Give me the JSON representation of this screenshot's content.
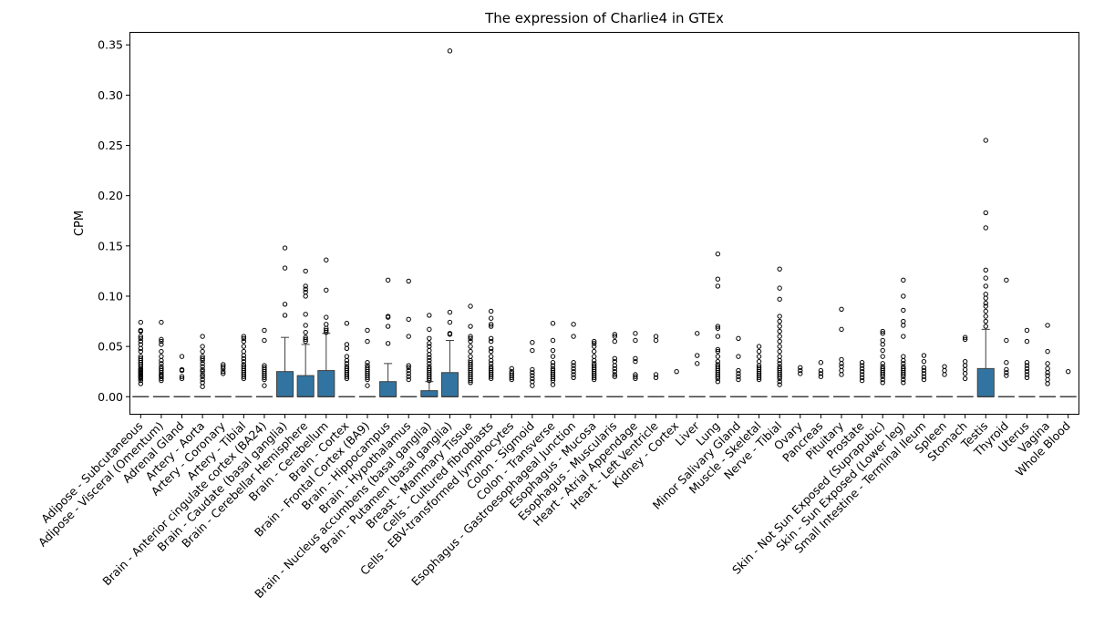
{
  "chart_data": {
    "type": "box",
    "title": "The expression of Charlie4 in GTEx",
    "xlabel": "",
    "ylabel": "CPM",
    "ylim": [
      -0.017,
      0.362
    ],
    "yticks": [
      0.0,
      0.05,
      0.1,
      0.15,
      0.2,
      0.25,
      0.3,
      0.35
    ],
    "ytick_labels": [
      "0.00",
      "0.05",
      "0.10",
      "0.15",
      "0.20",
      "0.25",
      "0.30",
      "0.35"
    ],
    "grid": false,
    "box_color": "#3274a1",
    "categories": [
      {
        "name": "Adipose - Subcutaneous",
        "box": [
          0,
          0,
          0,
          0,
          0
        ],
        "outliers": [
          0.013,
          0.016,
          0.018,
          0.019,
          0.02,
          0.021,
          0.022,
          0.023,
          0.024,
          0.025,
          0.026,
          0.027,
          0.028,
          0.03,
          0.032,
          0.034,
          0.036,
          0.038,
          0.04,
          0.045,
          0.048,
          0.052,
          0.055,
          0.058,
          0.06,
          0.065,
          0.066,
          0.074
        ]
      },
      {
        "name": "Adipose - Visceral (Omentum)",
        "box": [
          0,
          0,
          0,
          0,
          0
        ],
        "outliers": [
          0.016,
          0.018,
          0.02,
          0.021,
          0.022,
          0.024,
          0.026,
          0.028,
          0.03,
          0.033,
          0.036,
          0.04,
          0.045,
          0.052,
          0.055,
          0.057,
          0.074
        ]
      },
      {
        "name": "Adrenal Gland",
        "box": [
          0,
          0,
          0,
          0,
          0
        ],
        "outliers": [
          0.018,
          0.02,
          0.026,
          0.027,
          0.04
        ]
      },
      {
        "name": "Artery - Aorta",
        "box": [
          0,
          0,
          0,
          0,
          0
        ],
        "outliers": [
          0.01,
          0.014,
          0.017,
          0.02,
          0.022,
          0.025,
          0.027,
          0.03,
          0.033,
          0.036,
          0.038,
          0.04,
          0.045,
          0.05,
          0.06
        ]
      },
      {
        "name": "Artery - Coronary",
        "box": [
          0,
          0,
          0,
          0,
          0
        ],
        "outliers": [
          0.023,
          0.025,
          0.028,
          0.03,
          0.032
        ]
      },
      {
        "name": "Artery - Tibial",
        "box": [
          0,
          0,
          0,
          0,
          0
        ],
        "outliers": [
          0.018,
          0.02,
          0.022,
          0.024,
          0.026,
          0.028,
          0.03,
          0.032,
          0.035,
          0.038,
          0.041,
          0.045,
          0.05,
          0.055,
          0.058,
          0.06
        ]
      },
      {
        "name": "Brain - Anterior cingulate cortex (BA24)",
        "box": [
          0,
          0,
          0,
          0,
          0
        ],
        "outliers": [
          0.011,
          0.017,
          0.019,
          0.021,
          0.023,
          0.025,
          0.027,
          0.029,
          0.031,
          0.056,
          0.066
        ]
      },
      {
        "name": "Brain - Caudate (basal ganglia)",
        "box": [
          0,
          0,
          0,
          0.025,
          0.059
        ],
        "outliers": [
          0.081,
          0.092,
          0.128,
          0.148
        ]
      },
      {
        "name": "Brain - Cerebellar Hemisphere",
        "box": [
          0,
          0,
          0,
          0.021,
          0.052
        ],
        "outliers": [
          0.055,
          0.057,
          0.059,
          0.064,
          0.071,
          0.082,
          0.1,
          0.104,
          0.107,
          0.11,
          0.125
        ]
      },
      {
        "name": "Brain - Cerebellum",
        "box": [
          0,
          0,
          0,
          0.026,
          0.063
        ],
        "outliers": [
          0.064,
          0.066,
          0.068,
          0.072,
          0.079,
          0.106,
          0.136
        ]
      },
      {
        "name": "Brain - Cortex",
        "box": [
          0,
          0,
          0,
          0,
          0
        ],
        "outliers": [
          0.018,
          0.02,
          0.022,
          0.024,
          0.026,
          0.028,
          0.03,
          0.033,
          0.036,
          0.04,
          0.048,
          0.052,
          0.073
        ]
      },
      {
        "name": "Brain - Frontal Cortex (BA9)",
        "box": [
          0,
          0,
          0,
          0,
          0
        ],
        "outliers": [
          0.011,
          0.017,
          0.019,
          0.021,
          0.023,
          0.025,
          0.027,
          0.029,
          0.031,
          0.034,
          0.055,
          0.066
        ]
      },
      {
        "name": "Brain - Hippocampus",
        "box": [
          0,
          0,
          0,
          0.015,
          0.033
        ],
        "outliers": [
          0.053,
          0.07,
          0.079,
          0.08,
          0.116
        ]
      },
      {
        "name": "Brain - Hypothalamus",
        "box": [
          0,
          0,
          0,
          0,
          0
        ],
        "outliers": [
          0.017,
          0.02,
          0.023,
          0.026,
          0.029,
          0.031,
          0.06,
          0.077,
          0.115
        ]
      },
      {
        "name": "Brain - Nucleus accumbens (basal ganglia)",
        "box": [
          0,
          0,
          0,
          0.006,
          0.015
        ],
        "outliers": [
          0.016,
          0.018,
          0.02,
          0.022,
          0.024,
          0.026,
          0.028,
          0.03,
          0.033,
          0.036,
          0.039,
          0.042,
          0.046,
          0.05,
          0.053,
          0.058,
          0.067,
          0.081
        ]
      },
      {
        "name": "Brain - Putamen (basal ganglia)",
        "box": [
          0,
          0,
          0,
          0.024,
          0.056
        ],
        "outliers": [
          0.062,
          0.063,
          0.074,
          0.084,
          0.344
        ]
      },
      {
        "name": "Breast - Mammary Tissue",
        "box": [
          0,
          0,
          0,
          0,
          0
        ],
        "outliers": [
          0.014,
          0.016,
          0.018,
          0.02,
          0.022,
          0.024,
          0.026,
          0.028,
          0.03,
          0.032,
          0.034,
          0.036,
          0.04,
          0.045,
          0.05,
          0.055,
          0.058,
          0.06,
          0.07,
          0.09
        ]
      },
      {
        "name": "Cells - Cultured fibroblasts",
        "box": [
          0,
          0,
          0,
          0,
          0
        ],
        "outliers": [
          0.018,
          0.02,
          0.022,
          0.024,
          0.026,
          0.028,
          0.03,
          0.033,
          0.036,
          0.04,
          0.045,
          0.048,
          0.055,
          0.058,
          0.07,
          0.072,
          0.078,
          0.085
        ]
      },
      {
        "name": "Cells - EBV-transformed lymphocytes",
        "box": [
          0,
          0,
          0,
          0,
          0
        ],
        "outliers": [
          0.017,
          0.019,
          0.021,
          0.023,
          0.025,
          0.028
        ]
      },
      {
        "name": "Colon - Sigmoid",
        "box": [
          0,
          0,
          0,
          0,
          0
        ],
        "outliers": [
          0.011,
          0.015,
          0.018,
          0.021,
          0.024,
          0.027,
          0.046,
          0.054
        ]
      },
      {
        "name": "Colon - Transverse",
        "box": [
          0,
          0,
          0,
          0,
          0
        ],
        "outliers": [
          0.012,
          0.016,
          0.018,
          0.02,
          0.022,
          0.024,
          0.026,
          0.028,
          0.031,
          0.034,
          0.04,
          0.046,
          0.056,
          0.073
        ]
      },
      {
        "name": "Esophagus - Gastroesophageal Junction",
        "box": [
          0,
          0,
          0,
          0,
          0
        ],
        "outliers": [
          0.019,
          0.022,
          0.025,
          0.028,
          0.031,
          0.034,
          0.06,
          0.072
        ]
      },
      {
        "name": "Esophagus - Mucosa",
        "box": [
          0,
          0,
          0,
          0,
          0
        ],
        "outliers": [
          0.017,
          0.019,
          0.021,
          0.023,
          0.025,
          0.027,
          0.029,
          0.031,
          0.033,
          0.036,
          0.04,
          0.045,
          0.05,
          0.053,
          0.055
        ]
      },
      {
        "name": "Esophagus - Muscularis",
        "box": [
          0,
          0,
          0,
          0,
          0
        ],
        "outliers": [
          0.02,
          0.022,
          0.025,
          0.028,
          0.031,
          0.035,
          0.038,
          0.055,
          0.06,
          0.062
        ]
      },
      {
        "name": "Heart - Atrial Appendage",
        "box": [
          0,
          0,
          0,
          0,
          0
        ],
        "outliers": [
          0.018,
          0.02,
          0.022,
          0.035,
          0.038,
          0.056,
          0.063
        ]
      },
      {
        "name": "Heart - Left Ventricle",
        "box": [
          0,
          0,
          0,
          0,
          0
        ],
        "outliers": [
          0.019,
          0.022,
          0.056,
          0.06
        ]
      },
      {
        "name": "Kidney - Cortex",
        "box": [
          0,
          0,
          0,
          0,
          0
        ],
        "outliers": [
          0.025
        ]
      },
      {
        "name": "Liver",
        "box": [
          0,
          0,
          0,
          0,
          0
        ],
        "outliers": [
          0.033,
          0.041,
          0.063
        ]
      },
      {
        "name": "Lung",
        "box": [
          0,
          0,
          0,
          0,
          0
        ],
        "outliers": [
          0.015,
          0.018,
          0.02,
          0.022,
          0.024,
          0.026,
          0.028,
          0.03,
          0.032,
          0.035,
          0.04,
          0.045,
          0.047,
          0.06,
          0.068,
          0.07,
          0.11,
          0.117,
          0.142
        ]
      },
      {
        "name": "Minor Salivary Gland",
        "box": [
          0,
          0,
          0,
          0,
          0
        ],
        "outliers": [
          0.017,
          0.02,
          0.023,
          0.026,
          0.04,
          0.058
        ]
      },
      {
        "name": "Muscle - Skeletal",
        "box": [
          0,
          0,
          0,
          0,
          0
        ],
        "outliers": [
          0.017,
          0.019,
          0.021,
          0.023,
          0.025,
          0.027,
          0.029,
          0.031,
          0.035,
          0.04,
          0.045,
          0.05
        ]
      },
      {
        "name": "Nerve - Tibial",
        "box": [
          0,
          0,
          0,
          0,
          0
        ],
        "outliers": [
          0.012,
          0.015,
          0.018,
          0.02,
          0.022,
          0.024,
          0.026,
          0.028,
          0.03,
          0.033,
          0.036,
          0.04,
          0.045,
          0.05,
          0.055,
          0.06,
          0.065,
          0.07,
          0.075,
          0.08,
          0.097,
          0.108,
          0.127
        ]
      },
      {
        "name": "Ovary",
        "box": [
          0,
          0,
          0,
          0,
          0
        ],
        "outliers": [
          0.023,
          0.026,
          0.029
        ]
      },
      {
        "name": "Pancreas",
        "box": [
          0,
          0,
          0,
          0,
          0
        ],
        "outliers": [
          0.02,
          0.023,
          0.026,
          0.034
        ]
      },
      {
        "name": "Pituitary",
        "box": [
          0,
          0,
          0,
          0,
          0
        ],
        "outliers": [
          0.022,
          0.026,
          0.03,
          0.033,
          0.037,
          0.067,
          0.087
        ]
      },
      {
        "name": "Prostate",
        "box": [
          0,
          0,
          0,
          0,
          0
        ],
        "outliers": [
          0.016,
          0.019,
          0.022,
          0.025,
          0.028,
          0.031,
          0.034
        ]
      },
      {
        "name": "Skin - Not Sun Exposed (Suprapubic)",
        "box": [
          0,
          0,
          0,
          0,
          0
        ],
        "outliers": [
          0.014,
          0.017,
          0.02,
          0.022,
          0.024,
          0.026,
          0.028,
          0.03,
          0.033,
          0.04,
          0.046,
          0.052,
          0.056,
          0.063,
          0.065
        ]
      },
      {
        "name": "Skin - Sun Exposed (Lower leg)",
        "box": [
          0,
          0,
          0,
          0,
          0
        ],
        "outliers": [
          0.014,
          0.017,
          0.02,
          0.022,
          0.024,
          0.026,
          0.028,
          0.03,
          0.033,
          0.036,
          0.04,
          0.06,
          0.071,
          0.075,
          0.086,
          0.1,
          0.116
        ]
      },
      {
        "name": "Small Intestine - Terminal Ileum",
        "box": [
          0,
          0,
          0,
          0,
          0
        ],
        "outliers": [
          0.017,
          0.02,
          0.023,
          0.026,
          0.029,
          0.035,
          0.041
        ]
      },
      {
        "name": "Spleen",
        "box": [
          0,
          0,
          0,
          0,
          0
        ],
        "outliers": [
          0.022,
          0.026,
          0.03
        ]
      },
      {
        "name": "Stomach",
        "box": [
          0,
          0,
          0,
          0,
          0
        ],
        "outliers": [
          0.018,
          0.023,
          0.027,
          0.031,
          0.035,
          0.057,
          0.059
        ]
      },
      {
        "name": "Testis",
        "box": [
          0,
          0,
          0,
          0.028,
          0.067
        ],
        "outliers": [
          0.07,
          0.075,
          0.08,
          0.085,
          0.09,
          0.093,
          0.098,
          0.102,
          0.11,
          0.118,
          0.126,
          0.168,
          0.183,
          0.255
        ]
      },
      {
        "name": "Thyroid",
        "box": [
          0,
          0,
          0,
          0,
          0
        ],
        "outliers": [
          0.021,
          0.024,
          0.027,
          0.034,
          0.056,
          0.116
        ]
      },
      {
        "name": "Uterus",
        "box": [
          0,
          0,
          0,
          0,
          0
        ],
        "outliers": [
          0.019,
          0.022,
          0.025,
          0.028,
          0.031,
          0.034,
          0.055,
          0.066
        ]
      },
      {
        "name": "Vagina",
        "box": [
          0,
          0,
          0,
          0,
          0
        ],
        "outliers": [
          0.013,
          0.017,
          0.021,
          0.024,
          0.028,
          0.033,
          0.045,
          0.071
        ]
      },
      {
        "name": "Whole Blood",
        "box": [
          0,
          0,
          0,
          0,
          0
        ],
        "outliers": [
          0.025
        ]
      }
    ]
  }
}
